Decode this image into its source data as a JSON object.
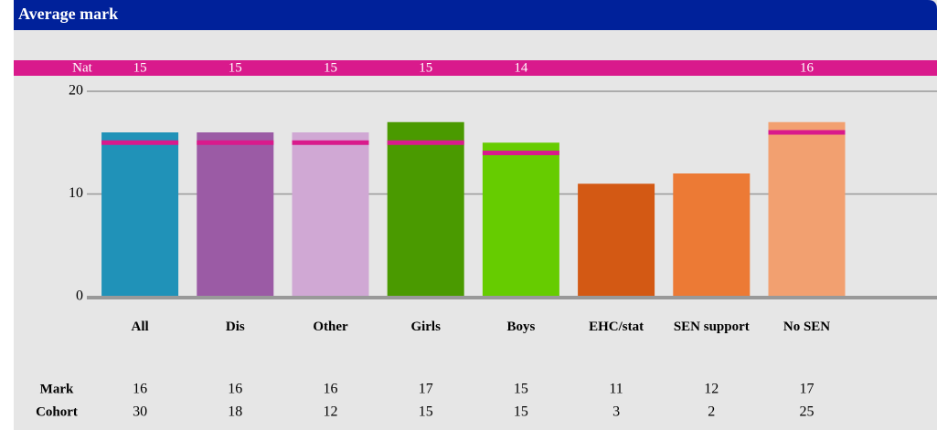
{
  "chart_data": {
    "type": "bar",
    "title": "Average mark",
    "categories": [
      "All",
      "Dis",
      "Other",
      "Girls",
      "Boys",
      "EHC/stat",
      "SEN support",
      "No SEN"
    ],
    "values": [
      16,
      16,
      16,
      17,
      15,
      11,
      12,
      17
    ],
    "colors": [
      "#2092b8",
      "#9b5ba5",
      "#d0a8d4",
      "#4a9a00",
      "#66cc00",
      "#d35914",
      "#ec7a35",
      "#f2a070"
    ],
    "nat_label": "Nat",
    "nat": [
      15,
      15,
      15,
      15,
      14,
      null,
      null,
      16
    ],
    "nat_color": "#d91a8c",
    "ylim": [
      0,
      20
    ],
    "yticks": [
      0,
      10,
      20
    ],
    "grid": true,
    "mark_label": "Mark",
    "cohort_label": "Cohort",
    "cohort": [
      30,
      18,
      12,
      15,
      15,
      3,
      2,
      25
    ]
  }
}
